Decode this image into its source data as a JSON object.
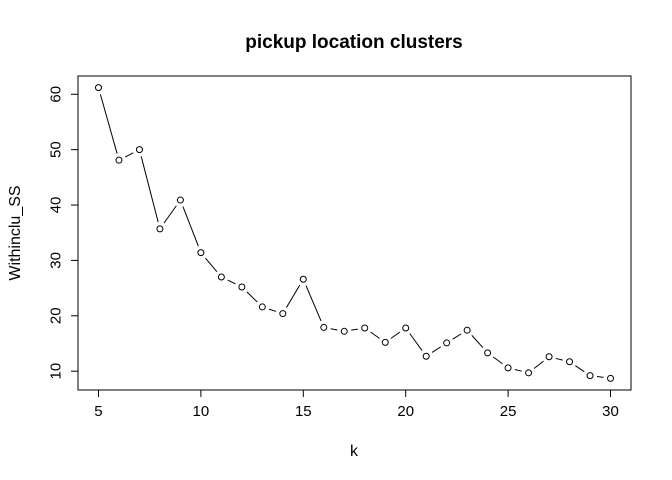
{
  "chart_data": {
    "type": "line",
    "title": "pickup location clusters",
    "xlabel": "k",
    "ylabel": "Withinclu_SS",
    "x": [
      5,
      6,
      7,
      8,
      9,
      10,
      11,
      12,
      13,
      14,
      15,
      16,
      17,
      18,
      19,
      20,
      21,
      22,
      23,
      24,
      25,
      26,
      27,
      28,
      29,
      30
    ],
    "values": [
      61.2,
      48.1,
      50.0,
      35.7,
      40.9,
      31.4,
      27.0,
      25.2,
      21.6,
      20.4,
      26.6,
      17.9,
      17.2,
      17.8,
      15.2,
      17.8,
      12.7,
      15.1,
      17.4,
      13.3,
      10.6,
      9.7,
      12.6,
      11.7,
      9.2,
      8.7
    ],
    "xlim": [
      4.0,
      31.0
    ],
    "ylim": [
      6.6,
      63.3
    ],
    "xticks": [
      5,
      10,
      15,
      20,
      25,
      30
    ],
    "yticks": [
      10,
      20,
      30,
      40,
      50,
      60
    ],
    "marker": "open-circle",
    "line_style": "solid",
    "grid": false,
    "legend": "none",
    "colors": {
      "line": "#000000",
      "marker": "#000000",
      "background": "#ffffff"
    }
  }
}
